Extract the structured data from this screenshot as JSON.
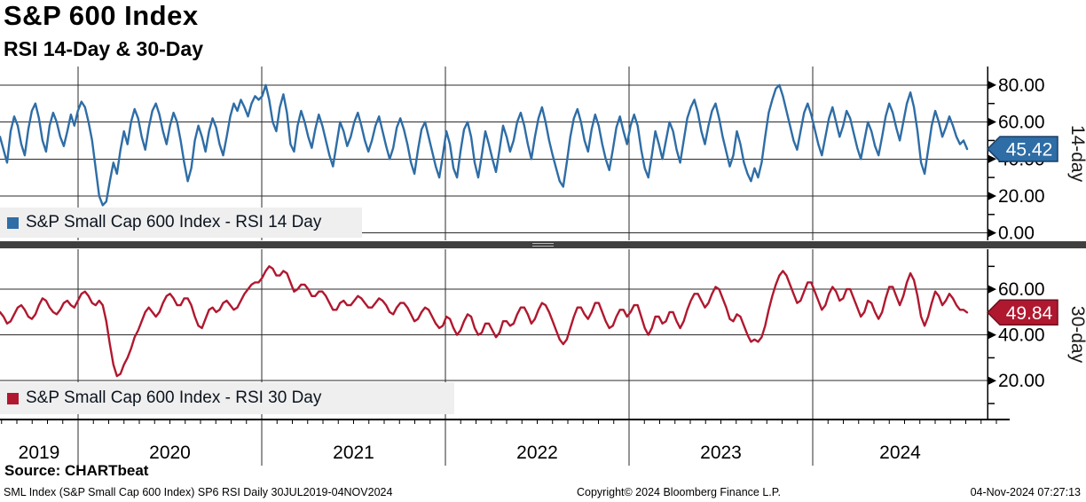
{
  "header": {
    "title": "S&P 600 Index",
    "subtitle": "RSI 14-Day & 30-Day"
  },
  "source": {
    "label": "Source: CHARTbeat"
  },
  "footer": {
    "left": "SML Index (S&P Small Cap 600 Index) SP6 RSI  Daily 30JUL2019-04NOV2024",
    "center": "Copyright© 2024 Bloomberg Finance L.P.",
    "right": "04-Nov-2024 07:27:13"
  },
  "x_axis": {
    "year_labels": [
      "2019",
      "2020",
      "2021",
      "2022",
      "2023",
      "2024"
    ],
    "range_text": "30JUL2019-04NOV2024"
  },
  "chart_data": [
    {
      "type": "line",
      "panel": "top",
      "legend": "S&P Small Cap 600 Index - RSI 14 Day",
      "axis_label": "14-day",
      "color": "#2E6DA6",
      "tag_border": "#1b3f66",
      "last_value": 45.42,
      "last_value_label": "45.42",
      "ylim": [
        -4,
        90
      ],
      "yticks": [
        0,
        20,
        40,
        60,
        80
      ],
      "yticks_minor": [
        10,
        30,
        50,
        70
      ],
      "sampling": "weekly estimates, 30JUL2019-04NOV2024",
      "values": [
        52,
        45,
        38,
        55,
        63,
        58,
        48,
        42,
        56,
        66,
        70,
        62,
        50,
        44,
        58,
        65,
        60,
        52,
        47,
        55,
        64,
        58,
        66,
        71,
        68,
        60,
        50,
        35,
        20,
        15,
        17,
        28,
        38,
        32,
        45,
        55,
        48,
        60,
        67,
        62,
        52,
        45,
        57,
        66,
        70,
        64,
        55,
        48,
        58,
        65,
        60,
        50,
        38,
        28,
        35,
        50,
        58,
        52,
        44,
        55,
        62,
        57,
        48,
        42,
        52,
        63,
        70,
        66,
        72,
        68,
        63,
        70,
        74,
        72,
        74,
        80,
        72,
        60,
        55,
        68,
        75,
        65,
        48,
        44,
        58,
        66,
        60,
        52,
        46,
        56,
        64,
        58,
        50,
        42,
        36,
        48,
        60,
        55,
        47,
        52,
        60,
        65,
        58,
        50,
        44,
        50,
        58,
        63,
        55,
        47,
        40,
        46,
        57,
        62,
        56,
        48,
        38,
        32,
        45,
        56,
        60,
        52,
        44,
        36,
        30,
        42,
        55,
        48,
        35,
        30,
        44,
        56,
        60,
        52,
        38,
        30,
        42,
        55,
        48,
        40,
        33,
        45,
        58,
        52,
        44,
        50,
        60,
        65,
        58,
        48,
        40,
        52,
        62,
        68,
        60,
        50,
        42,
        35,
        28,
        25,
        38,
        52,
        62,
        67,
        60,
        50,
        44,
        56,
        64,
        58,
        48,
        40,
        34,
        45,
        57,
        63,
        55,
        48,
        58,
        64,
        58,
        45,
        35,
        30,
        42,
        55,
        48,
        40,
        50,
        60,
        55,
        45,
        38,
        50,
        62,
        68,
        72,
        65,
        55,
        48,
        58,
        66,
        70,
        62,
        52,
        44,
        36,
        42,
        55,
        48,
        38,
        32,
        28,
        35,
        30,
        38,
        52,
        65,
        72,
        78,
        80,
        74,
        66,
        58,
        50,
        45,
        55,
        65,
        70,
        64,
        56,
        48,
        42,
        52,
        62,
        68,
        60,
        52,
        58,
        66,
        62,
        54,
        46,
        40,
        50,
        60,
        55,
        47,
        42,
        52,
        63,
        70,
        65,
        57,
        50,
        60,
        70,
        76,
        68,
        55,
        38,
        32,
        45,
        58,
        66,
        60,
        52,
        57,
        63,
        58,
        52,
        48,
        50,
        45.42
      ]
    },
    {
      "type": "line",
      "panel": "bottom",
      "legend": "S&P Small Cap 600 Index - RSI 30 Day",
      "axis_label": "30-day",
      "color": "#B0182F",
      "tag_border": "#6e0f1e",
      "last_value": 49.84,
      "last_value_label": "49.84",
      "ylim": [
        3,
        77.5
      ],
      "yticks": [
        20,
        40,
        60
      ],
      "yticks_minor": [
        10,
        30,
        50,
        70
      ],
      "sampling": "weekly estimates, 30JUL2019-04NOV2024",
      "values": [
        50,
        48,
        45,
        46,
        49,
        52,
        53,
        51,
        48,
        47,
        49,
        53,
        56,
        55,
        52,
        50,
        49,
        51,
        54,
        55,
        53,
        52,
        55,
        58,
        59,
        57,
        54,
        53,
        55,
        53,
        46,
        36,
        27,
        22,
        23,
        27,
        30,
        34,
        39,
        42,
        46,
        50,
        52,
        50,
        48,
        50,
        54,
        57,
        58,
        56,
        53,
        53,
        56,
        56,
        53,
        48,
        44,
        43,
        47,
        51,
        52,
        50,
        51,
        54,
        55,
        53,
        51,
        52,
        55,
        58,
        60,
        62,
        63,
        63,
        65,
        68,
        70,
        69,
        66,
        66,
        68,
        67,
        63,
        59,
        60,
        62,
        62,
        60,
        57,
        57,
        59,
        59,
        57,
        54,
        51,
        51,
        54,
        55,
        53,
        53,
        55,
        57,
        56,
        54,
        52,
        52,
        54,
        56,
        55,
        53,
        50,
        49,
        52,
        54,
        54,
        52,
        49,
        46,
        47,
        50,
        52,
        51,
        48,
        45,
        43,
        44,
        48,
        47,
        43,
        40,
        42,
        46,
        49,
        48,
        43,
        40,
        41,
        45,
        45,
        42,
        39,
        41,
        46,
        46,
        44,
        45,
        49,
        52,
        52,
        49,
        45,
        47,
        51,
        54,
        53,
        50,
        46,
        42,
        38,
        36,
        38,
        43,
        48,
        52,
        52,
        49,
        47,
        50,
        54,
        54,
        50,
        46,
        43,
        44,
        48,
        51,
        51,
        48,
        50,
        53,
        53,
        48,
        43,
        40,
        43,
        48,
        48,
        45,
        46,
        50,
        50,
        46,
        43,
        46,
        51,
        55,
        58,
        58,
        55,
        52,
        54,
        58,
        61,
        60,
        56,
        52,
        47,
        46,
        49,
        48,
        44,
        40,
        37,
        38,
        37,
        39,
        44,
        51,
        57,
        62,
        66,
        68,
        66,
        62,
        58,
        54,
        55,
        59,
        63,
        63,
        59,
        55,
        51,
        53,
        58,
        61,
        59,
        55,
        56,
        60,
        60,
        56,
        52,
        48,
        50,
        55,
        54,
        50,
        47,
        50,
        56,
        61,
        61,
        57,
        53,
        57,
        63,
        67,
        64,
        57,
        48,
        44,
        48,
        54,
        59,
        57,
        53,
        55,
        58,
        56,
        53,
        51,
        51,
        49.84
      ]
    }
  ]
}
